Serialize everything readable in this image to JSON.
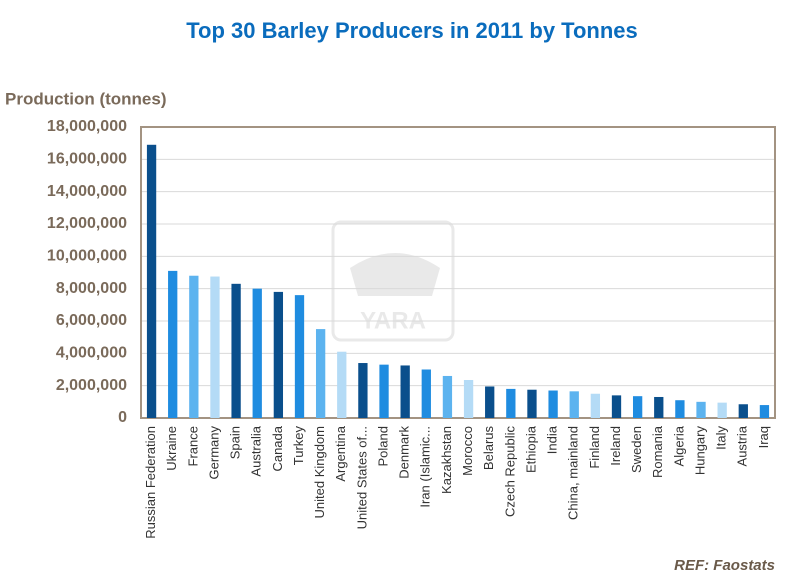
{
  "chart_data": {
    "type": "bar",
    "title": "Top 30 Barley Producers in 2011 by Tonnes",
    "y_label": "Production (tonnes)",
    "source": "REF: Faostats",
    "watermark": "YARA",
    "categories": [
      "Russian Federation",
      "Ukraine",
      "France",
      "Germany",
      "Spain",
      "Australia",
      "Canada",
      "Turkey",
      "United Kingdom",
      "Argentina",
      "United States of...",
      "Poland",
      "Denmark",
      "Iran (Islamic...",
      "Kazakhstan",
      "Morocco",
      "Belarus",
      "Czech Republic",
      "Ethiopia",
      "India",
      "China, mainland",
      "Finland",
      "Ireland",
      "Sweden",
      "Romania",
      "Algeria",
      "Hungary",
      "Italy",
      "Austria",
      "Iraq"
    ],
    "values": [
      16900000,
      9100000,
      8800000,
      8750000,
      8300000,
      8000000,
      7800000,
      7600000,
      5500000,
      4100000,
      3400000,
      3300000,
      3250000,
      3000000,
      2600000,
      2350000,
      1950000,
      1800000,
      1750000,
      1700000,
      1650000,
      1500000,
      1400000,
      1350000,
      1300000,
      1100000,
      1000000,
      950000,
      850000,
      800000
    ],
    "colors": [
      "#0a4f8c",
      "#1f8ce0",
      "#5cb3ef",
      "#b4dbf6",
      "#0a4f8c",
      "#1f8ce0",
      "#0a4f8c",
      "#1f8ce0",
      "#5cb3ef",
      "#b4dbf6",
      "#0a4f8c",
      "#1f8ce0",
      "#0a4f8c",
      "#1f8ce0",
      "#5cb3ef",
      "#b4dbf6",
      "#0a4f8c",
      "#1f8ce0",
      "#0a4f8c",
      "#1f8ce0",
      "#5cb3ef",
      "#b4dbf6",
      "#0a4f8c",
      "#1f8ce0",
      "#0a4f8c",
      "#1f8ce0",
      "#5cb3ef",
      "#b4dbf6",
      "#0a4f8c",
      "#1f8ce0"
    ],
    "ylim": [
      0,
      18000000
    ],
    "yticks": [
      0,
      {
        "value": 2000000,
        "label": "2,000,000"
      },
      {
        "value": 4000000,
        "label": "4,000,000"
      },
      {
        "value": 6000000,
        "label": "6,000,000"
      },
      {
        "value": 8000000,
        "label": "8,000,000"
      },
      {
        "value": 10000000,
        "label": "10,000,000"
      },
      {
        "value": 12000000,
        "label": "12,000,000"
      },
      {
        "value": 14000000,
        "label": "14,000,000"
      },
      {
        "value": 16000000,
        "label": "16,000,000"
      },
      {
        "value": 18000000,
        "label": "18,000,000"
      }
    ],
    "grid": true
  }
}
